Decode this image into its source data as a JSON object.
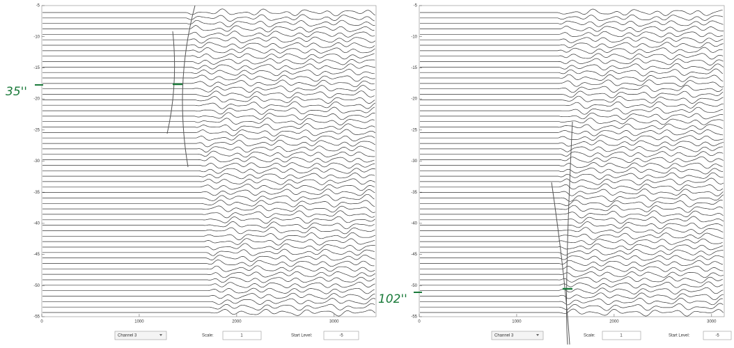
{
  "panels": [
    {
      "xlim": [
        0,
        3430
      ],
      "ylim": [
        -5,
        -55
      ],
      "xticks": [
        0,
        1000,
        2000,
        3000
      ],
      "yticks": [
        -5,
        -10,
        -15,
        -20,
        -25,
        -30,
        -35,
        -40,
        -45,
        -50,
        -55
      ],
      "annotation": "35''",
      "controls": {
        "channel": "Channel 3",
        "scale_label": "Scale:",
        "scale_value": "1",
        "start_label": "Start Level:",
        "start_value": "-5"
      }
    },
    {
      "xlim": [
        0,
        3130
      ],
      "ylim": [
        -5,
        -55
      ],
      "xticks": [
        0,
        1000,
        2000,
        3000
      ],
      "yticks": [
        -5,
        -10,
        -15,
        -20,
        -25,
        -30,
        -35,
        -40,
        -45,
        -50,
        -55
      ],
      "annotation": "102''",
      "controls": {
        "channel": "Channel 3",
        "scale_label": "Scale:",
        "scale_value": "1",
        "start_label": "Start Level:",
        "start_value": "-5"
      }
    }
  ]
}
